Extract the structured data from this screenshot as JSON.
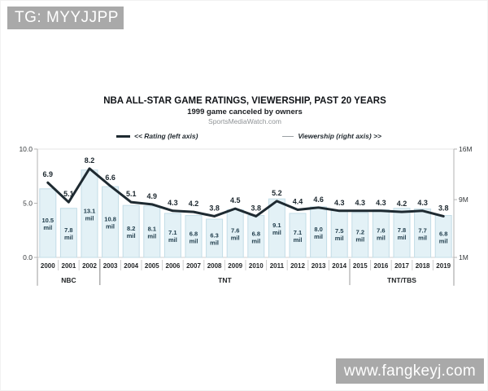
{
  "overlays": {
    "top_badge": "TG: MYYJJPP",
    "bottom_badge": "www.fangkeyj.com"
  },
  "chart_data": {
    "type": "bar+line",
    "title": "NBA ALL-STAR GAME RATINGS, VIEWERSHIP, PAST 20 YEARS",
    "subtitle": "1999 game canceled by owners",
    "source": "SportsMediaWatch.com",
    "legend": {
      "rating": "<< Rating (left axis)",
      "viewership": "Viewership (right axis) >>"
    },
    "categories": [
      "2000",
      "2001",
      "2002",
      "2003",
      "2004",
      "2005",
      "2006",
      "2007",
      "2008",
      "2009",
      "2010",
      "2011",
      "2012",
      "2013",
      "2014",
      "2015",
      "2016",
      "2017",
      "2018",
      "2019"
    ],
    "series": [
      {
        "name": "Rating",
        "axis": "left",
        "type": "line",
        "values": [
          6.9,
          5.1,
          8.2,
          6.6,
          5.1,
          4.9,
          4.3,
          4.2,
          3.8,
          4.5,
          3.8,
          5.2,
          4.4,
          4.6,
          4.3,
          4.3,
          4.3,
          4.2,
          4.3,
          3.8
        ]
      },
      {
        "name": "Viewership",
        "axis": "right",
        "type": "bar",
        "unit": "mil",
        "values": [
          10.5,
          7.8,
          13.1,
          10.8,
          8.2,
          8.1,
          7.1,
          6.8,
          6.3,
          7.6,
          6.8,
          9.1,
          7.1,
          8.0,
          7.5,
          7.2,
          7.6,
          7.8,
          7.7,
          6.8
        ]
      }
    ],
    "left_axis": {
      "ticks": [
        {
          "label": "10.0",
          "value": 10
        },
        {
          "label": "5.0",
          "value": 5
        },
        {
          "label": "0.0",
          "value": 0
        }
      ],
      "range": [
        0,
        10
      ]
    },
    "right_axis": {
      "ticks": [
        {
          "label": "16M",
          "value": 16
        },
        {
          "label": "9M",
          "value": 9
        },
        {
          "label": "1M",
          "value": 1
        }
      ],
      "range": [
        1,
        16
      ]
    },
    "groups": [
      {
        "label": "NBC",
        "start": 0,
        "end": 2
      },
      {
        "label": "TNT",
        "start": 3,
        "end": 14
      },
      {
        "label": "TNT/TBS",
        "start": 15,
        "end": 19
      }
    ],
    "colors": {
      "bar_fill": "#e3f1f6",
      "bar_stroke": "#c3dde7",
      "line": "#1e2a31",
      "value_label": "#1d3a49",
      "rating_label": "#1b262d",
      "axis_line": "#b3b3b3",
      "grid_line": "#e4e4e4",
      "tick_label": "#35393c",
      "year_label": "#222527",
      "separator": "#cfcfcf",
      "group_divider": "#9b9b9b",
      "badge_bg": "#a9a9a9"
    }
  }
}
